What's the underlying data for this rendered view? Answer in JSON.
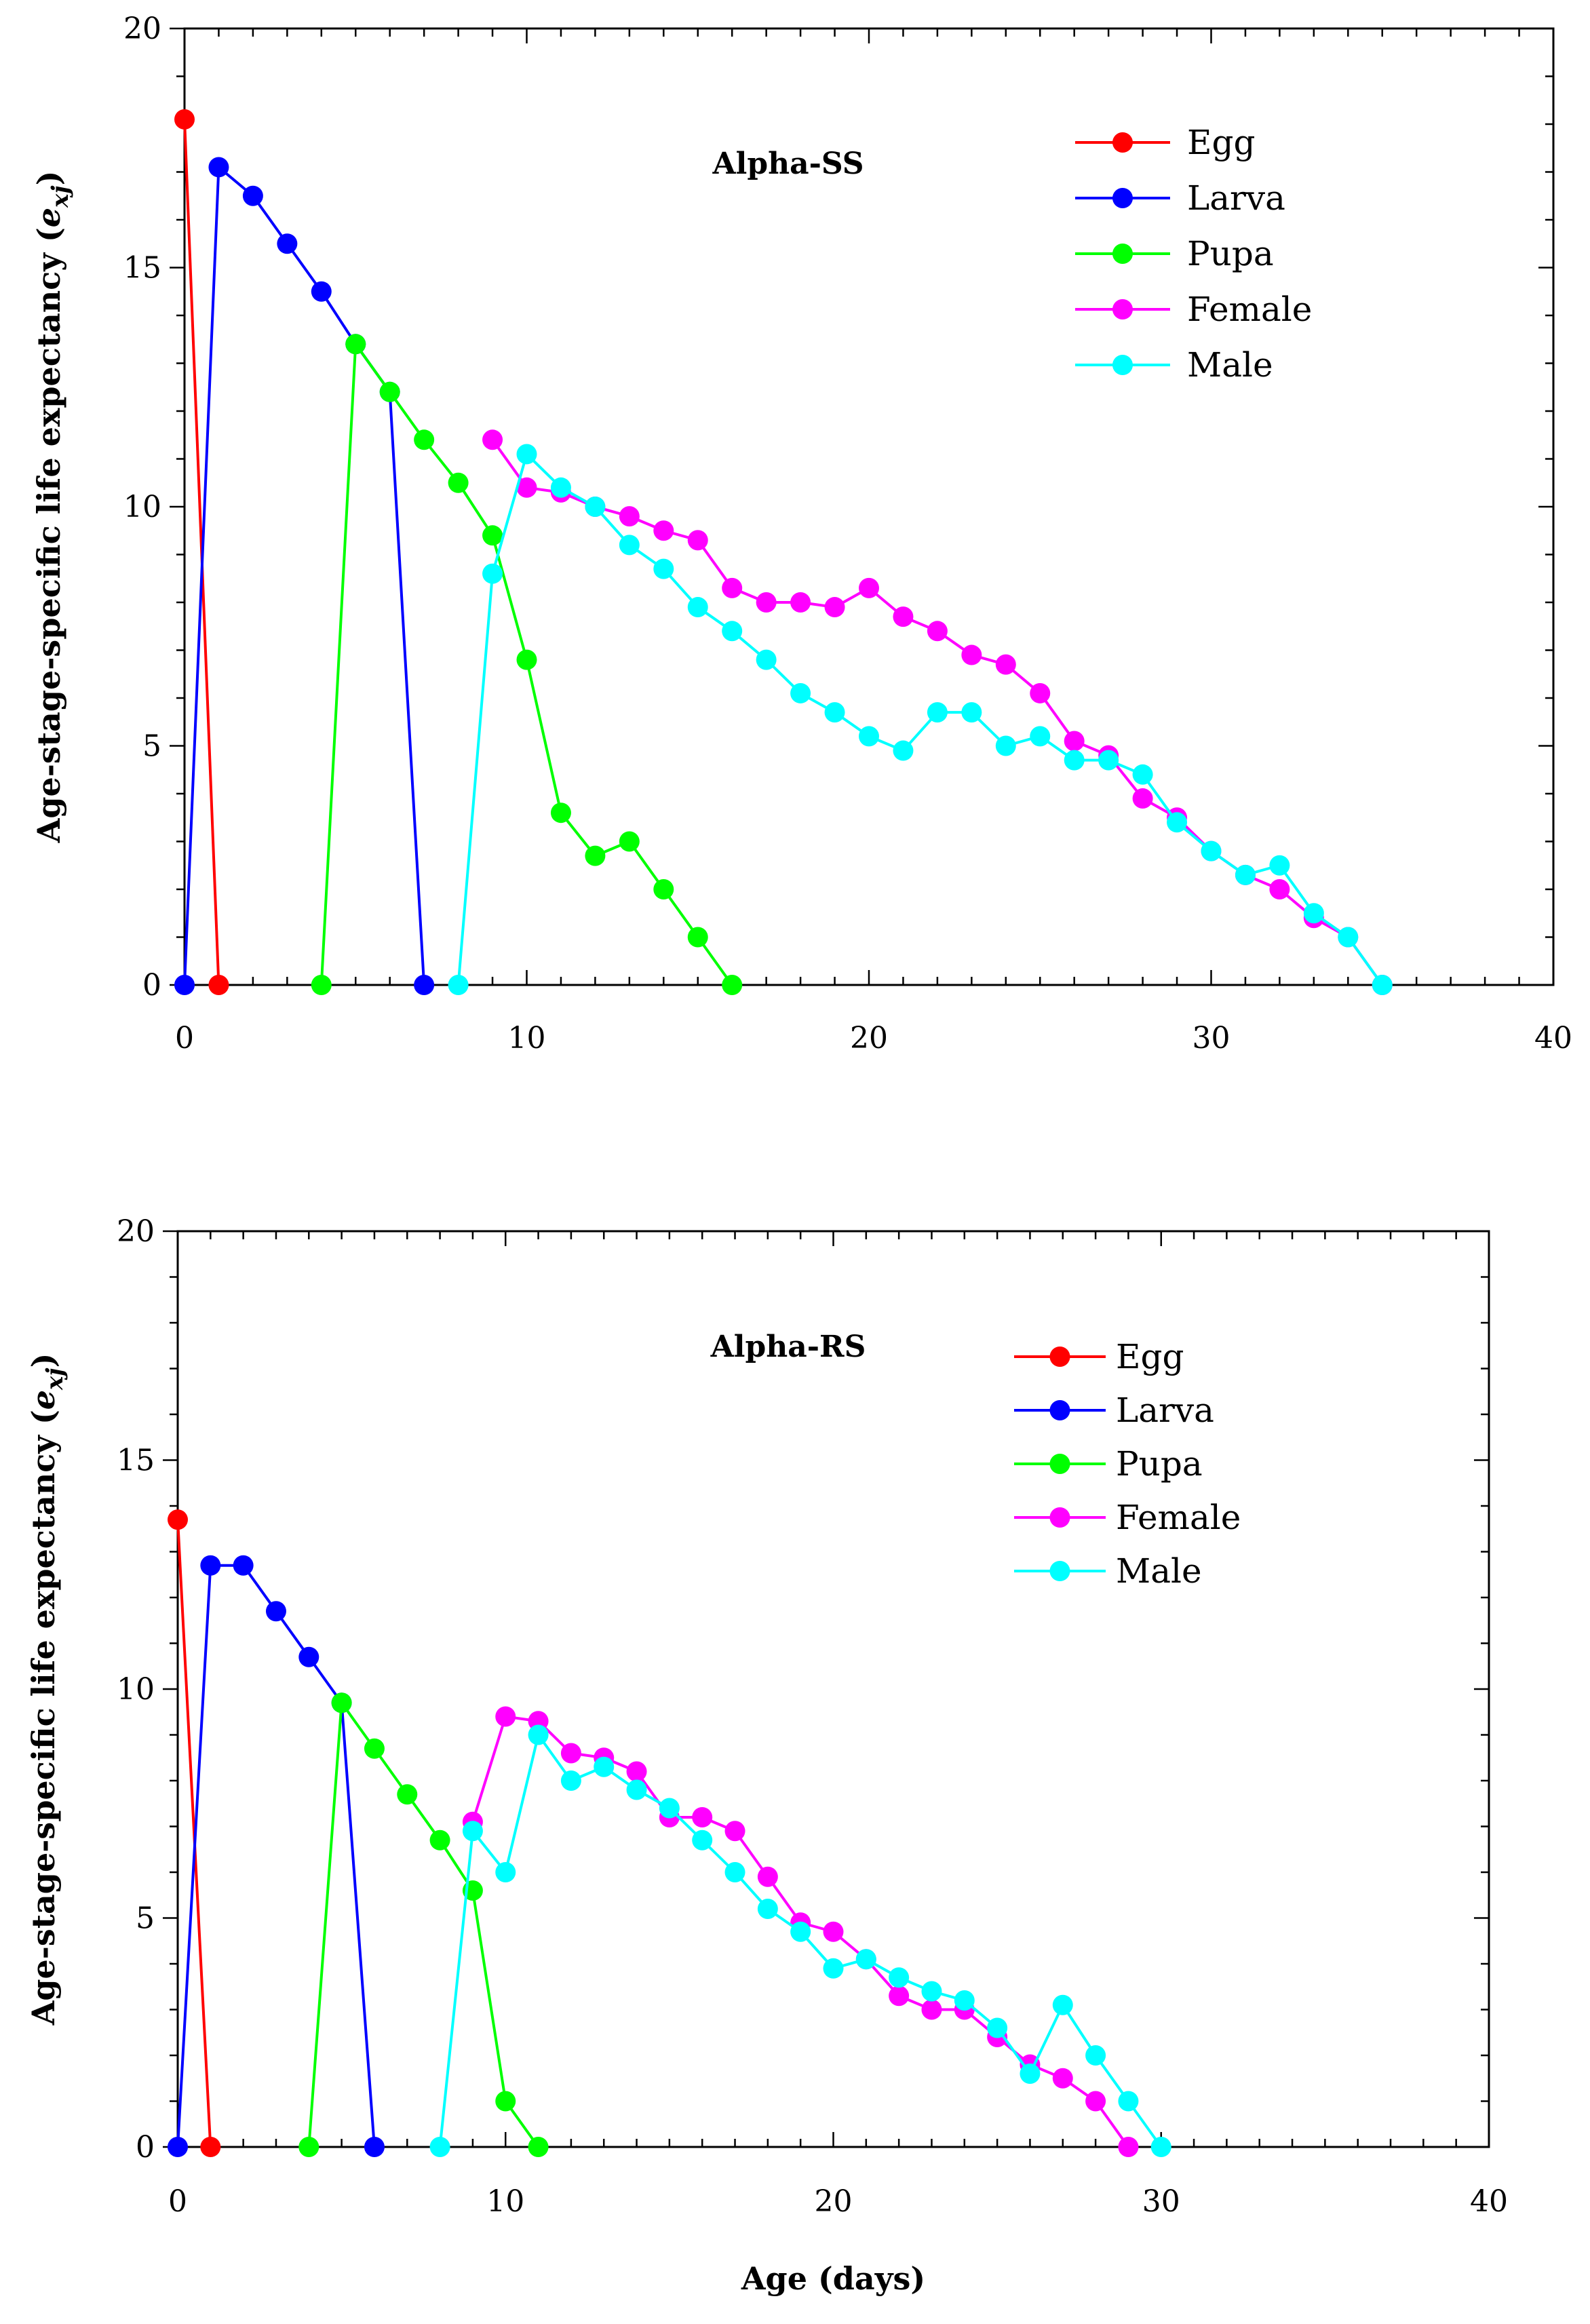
{
  "chart_data": [
    {
      "type": "line",
      "title": "Alpha-SS",
      "xlabel": "",
      "ylabel": "Age-stage-specific life expectancy (e_xj)",
      "ylabel_text": "Age-stage-specific life expectancy (",
      "ylabel_var": "e",
      "ylabel_sub": "xj",
      "ylabel_close": ")",
      "xlim": [
        0,
        40
      ],
      "ylim": [
        0,
        20
      ],
      "xticks": [
        "0",
        "10",
        "20",
        "30",
        "40"
      ],
      "yticks": [
        "0",
        "5",
        "10",
        "15",
        "20"
      ],
      "grid": false,
      "legend_position": "top-right",
      "series": [
        {
          "name": "Egg",
          "color": "#ff0000",
          "x": [
            0,
            1
          ],
          "y": [
            18.1,
            0
          ]
        },
        {
          "name": "Larva",
          "color": "#0000ff",
          "x": [
            0,
            1,
            2,
            3,
            4,
            5,
            6,
            7
          ],
          "y": [
            0,
            17.1,
            16.5,
            15.5,
            14.5,
            13.4,
            12.4,
            0
          ]
        },
        {
          "name": "Pupa",
          "color": "#00ff00",
          "x": [
            4,
            5,
            6,
            7,
            8,
            9,
            10,
            11,
            12,
            13,
            14,
            15,
            16
          ],
          "y": [
            0,
            13.4,
            12.4,
            11.4,
            10.5,
            9.4,
            6.8,
            3.6,
            2.7,
            3.0,
            2.0,
            1.0,
            0
          ]
        },
        {
          "name": "Female",
          "color": "#ff00ff",
          "x": [
            9,
            10,
            11,
            12,
            13,
            14,
            15,
            16,
            17,
            18,
            19,
            20,
            21,
            22,
            23,
            24,
            25,
            26,
            27,
            28,
            29,
            30,
            31,
            32,
            33,
            34,
            35
          ],
          "y": [
            11.4,
            10.4,
            10.3,
            10.0,
            9.8,
            9.5,
            9.3,
            8.3,
            8.0,
            8.0,
            7.9,
            8.3,
            7.7,
            7.4,
            6.9,
            6.7,
            6.1,
            5.1,
            4.8,
            3.9,
            3.5,
            2.8,
            2.3,
            2.0,
            1.4,
            1.0,
            0
          ]
        },
        {
          "name": "Male",
          "color": "#00ffff",
          "x": [
            8,
            9,
            10,
            11,
            12,
            13,
            14,
            15,
            16,
            17,
            18,
            19,
            20,
            21,
            22,
            23,
            24,
            25,
            26,
            27,
            28,
            29,
            30,
            31,
            32,
            33,
            34,
            35
          ],
          "y": [
            0,
            8.6,
            11.1,
            10.4,
            10.0,
            9.2,
            8.7,
            7.9,
            7.4,
            6.8,
            6.1,
            5.7,
            5.2,
            4.9,
            5.7,
            5.7,
            5.0,
            5.2,
            4.7,
            4.7,
            4.4,
            3.4,
            2.8,
            2.3,
            2.5,
            1.5,
            1.0,
            0
          ]
        }
      ]
    },
    {
      "type": "line",
      "title": "Alpha-RS",
      "xlabel": "Age (days)",
      "ylabel": "Age-stage-specific life expectancy (e_xj)",
      "ylabel_text": "Age-stage-specific life expectancy (",
      "ylabel_var": "e",
      "ylabel_sub": "xj",
      "ylabel_close": ")",
      "xlim": [
        0,
        40
      ],
      "ylim": [
        0,
        20
      ],
      "xticks": [
        "0",
        "10",
        "20",
        "30",
        "40"
      ],
      "yticks": [
        "0",
        "5",
        "10",
        "15",
        "20"
      ],
      "grid": false,
      "legend_position": "top-right",
      "series": [
        {
          "name": "Egg",
          "color": "#ff0000",
          "x": [
            0,
            1
          ],
          "y": [
            13.7,
            0
          ]
        },
        {
          "name": "Larva",
          "color": "#0000ff",
          "x": [
            0,
            1,
            2,
            3,
            4,
            5,
            6
          ],
          "y": [
            0,
            12.7,
            12.7,
            11.7,
            10.7,
            9.7,
            0
          ]
        },
        {
          "name": "Pupa",
          "color": "#00ff00",
          "x": [
            4,
            5,
            6,
            7,
            8,
            9,
            10,
            11
          ],
          "y": [
            0,
            9.7,
            8.7,
            7.7,
            6.7,
            5.6,
            1.0,
            0
          ]
        },
        {
          "name": "Female",
          "color": "#ff00ff",
          "x": [
            9,
            10,
            11,
            12,
            13,
            14,
            15,
            16,
            17,
            18,
            19,
            20,
            21,
            22,
            23,
            24,
            25,
            26,
            27,
            28,
            29
          ],
          "y": [
            7.1,
            9.4,
            9.3,
            8.6,
            8.5,
            8.2,
            7.2,
            7.2,
            6.9,
            5.9,
            4.9,
            4.7,
            4.1,
            3.3,
            3.0,
            3.0,
            2.4,
            1.8,
            1.5,
            1.0,
            0
          ]
        },
        {
          "name": "Male",
          "color": "#00ffff",
          "x": [
            8,
            9,
            10,
            11,
            12,
            13,
            14,
            15,
            16,
            17,
            18,
            19,
            20,
            21,
            22,
            23,
            24,
            25,
            26,
            27,
            28,
            29,
            30
          ],
          "y": [
            0,
            6.9,
            6.0,
            9.0,
            8.0,
            8.3,
            7.8,
            7.4,
            6.7,
            6.0,
            5.2,
            4.7,
            3.9,
            4.1,
            3.7,
            3.4,
            3.2,
            2.6,
            1.6,
            3.1,
            2.0,
            1.0,
            0
          ]
        }
      ]
    }
  ]
}
